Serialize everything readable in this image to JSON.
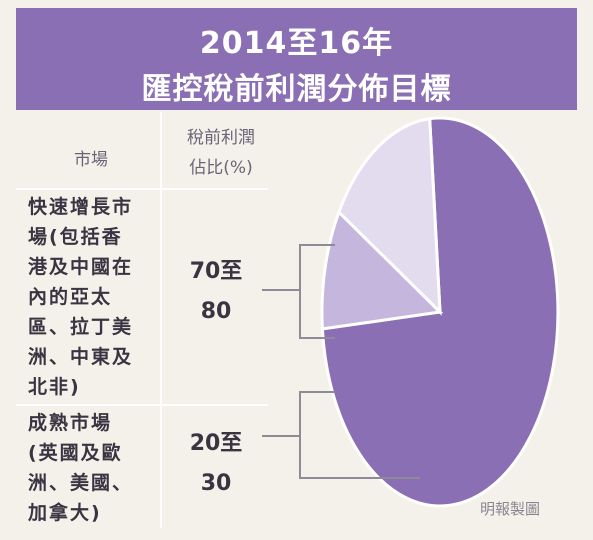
{
  "header": {
    "title_line1": "2014至16年",
    "title_line2": "匯控稅前利潤分佈目標"
  },
  "table": {
    "col_market": "市場",
    "col_share_line1": "稅前利潤",
    "col_share_line2": "佔比(%)",
    "rows": [
      {
        "market_lines": [
          "快速增長市",
          "場(包括香",
          "港及中國在",
          "內的亞太",
          "區、拉丁美",
          "洲、中東及",
          "北非)"
        ],
        "value_lines": [
          "70至",
          "80"
        ]
      },
      {
        "market_lines": [
          "成熟市場",
          "(英國及歐",
          "洲、美國、",
          "加拿大)"
        ],
        "value_lines": [
          "20至",
          "30"
        ]
      }
    ]
  },
  "credit": "明報製圖",
  "colors": {
    "header_bg": "#8a6fb5",
    "slice_large": "#8a6fb5",
    "slice_mid": "#c4b6dd",
    "slice_small": "#e3dcef"
  },
  "chart_data": {
    "type": "pie",
    "title": "2014至16年 匯控稅前利潤分佈目標",
    "unit": "%",
    "slices": [
      {
        "label": "快速增長市場(包括香港及中國在內的亞太區、拉丁美洲、中東及北非)",
        "value_range": [
          70,
          80
        ]
      },
      {
        "label": "成熟市場(英國及歐洲、美國、加拿大)",
        "value_range": [
          20,
          30
        ]
      }
    ],
    "shown_arc_degrees": [
      270,
      36,
      54
    ]
  }
}
